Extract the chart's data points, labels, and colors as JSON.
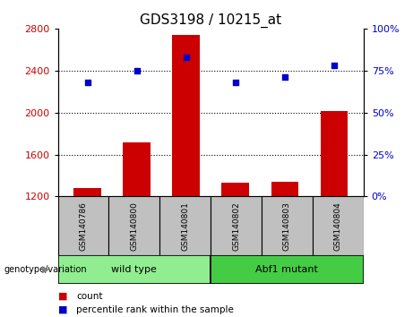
{
  "title": "GDS3198 / 10215_at",
  "samples": [
    "GSM140786",
    "GSM140800",
    "GSM140801",
    "GSM140802",
    "GSM140803",
    "GSM140804"
  ],
  "counts": [
    1280,
    1720,
    2740,
    1330,
    1340,
    2010
  ],
  "percentiles": [
    68,
    75,
    83,
    68,
    71,
    78
  ],
  "ylim_left": [
    1200,
    2800
  ],
  "ylim_right": [
    0,
    100
  ],
  "yticks_left": [
    1200,
    1600,
    2000,
    2400,
    2800
  ],
  "yticks_right": [
    0,
    25,
    50,
    75,
    100
  ],
  "bar_color": "#CC0000",
  "dot_color": "#0000CC",
  "sample_box_color": "#C0C0C0",
  "wt_color": "#90EE90",
  "mut_color": "#44CC44",
  "legend_count_color": "#CC0000",
  "legend_pct_color": "#0000CC",
  "legend_items": [
    "count",
    "percentile rank within the sample"
  ],
  "title_fontsize": 11,
  "tick_fontsize": 8,
  "bar_width": 0.55,
  "grid_yticks": [
    1600,
    2000,
    2400
  ]
}
